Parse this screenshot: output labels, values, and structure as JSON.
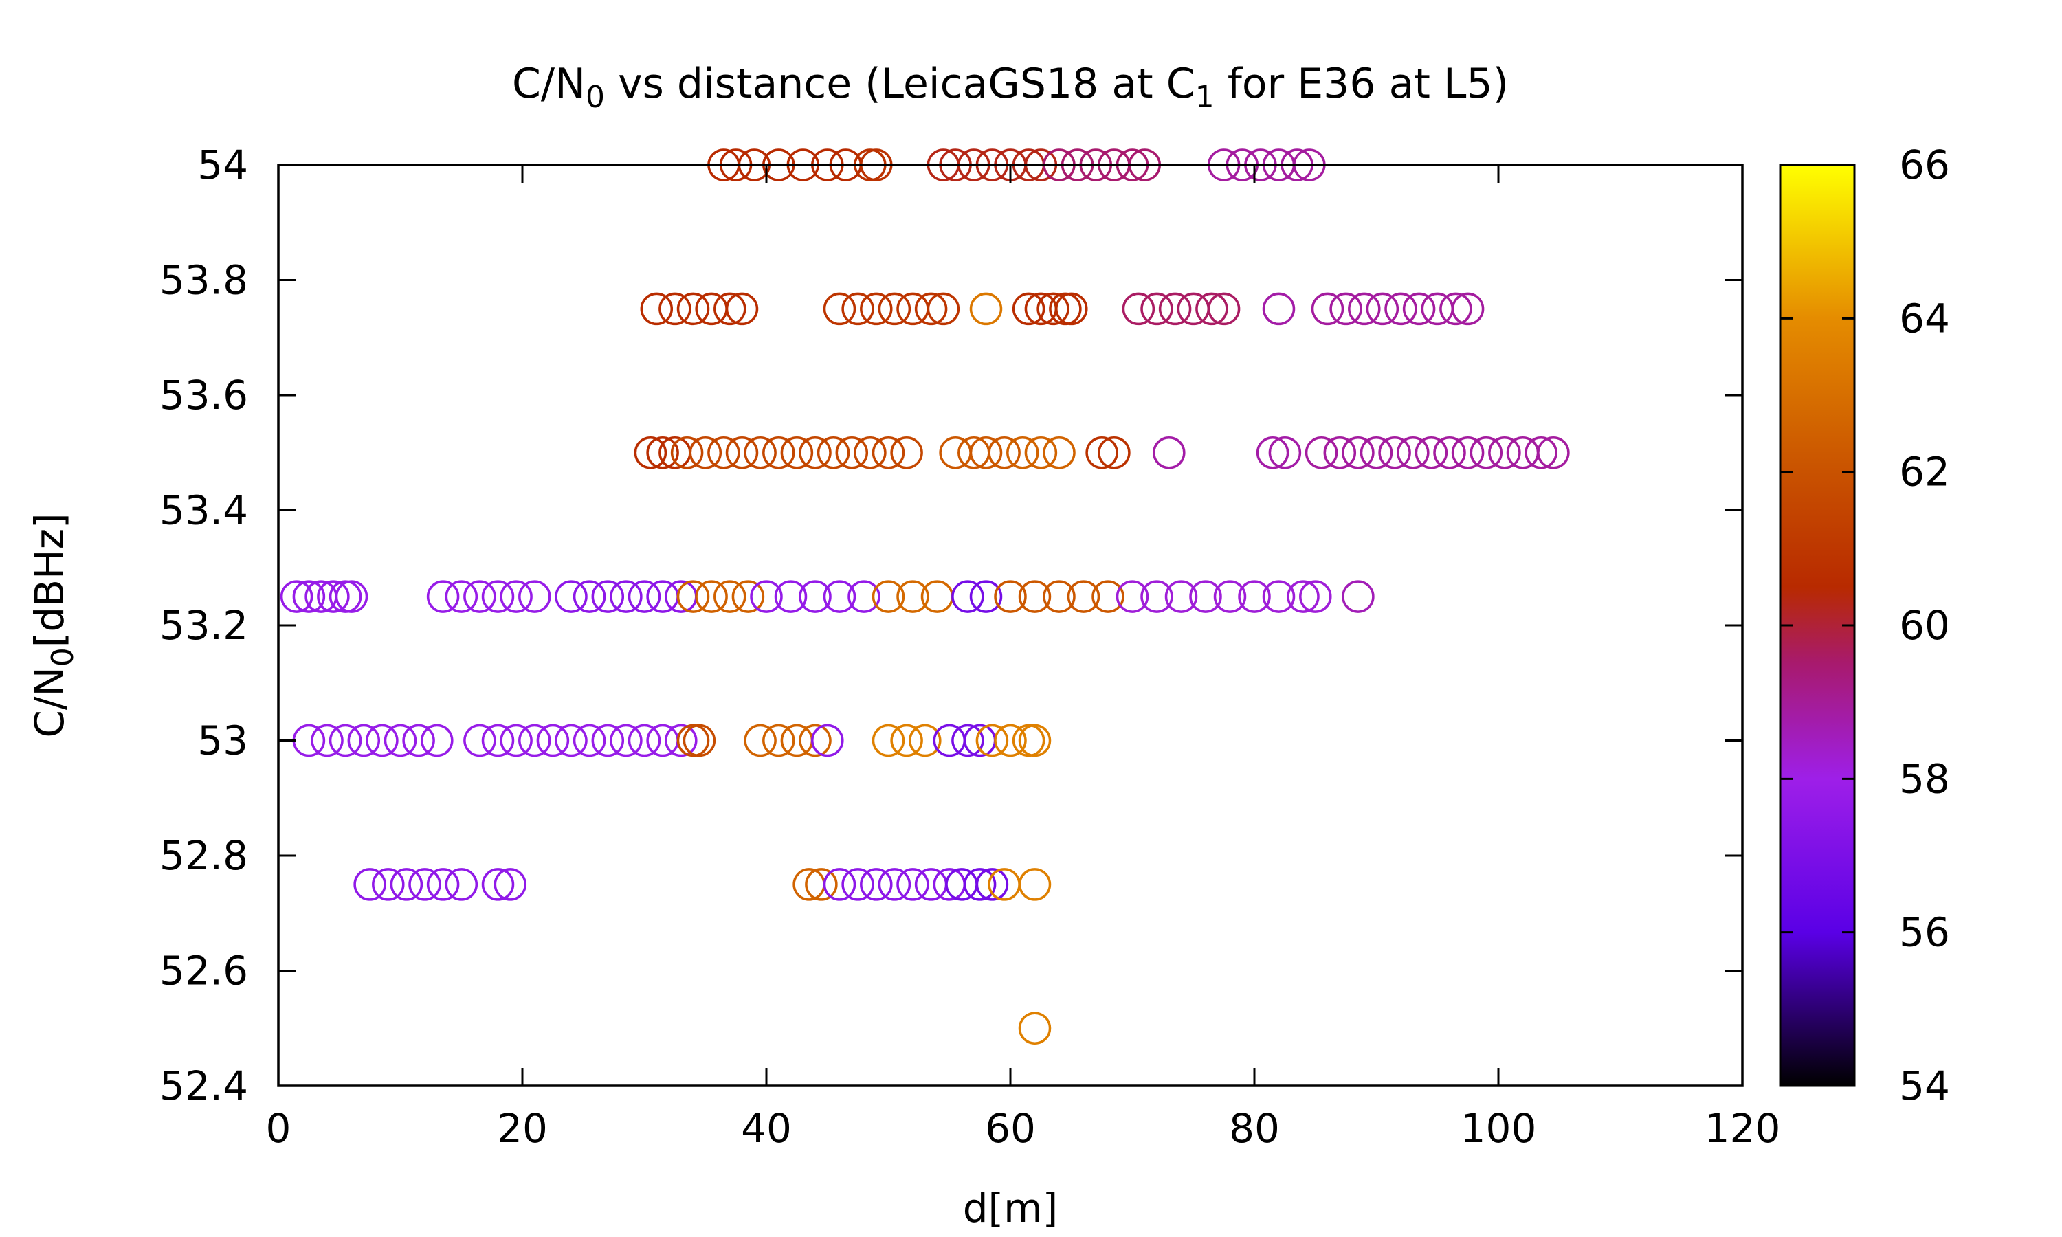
{
  "chart_data": {
    "type": "scatter",
    "title": {
      "main": "C/N",
      "main_sub": "0",
      "middle": " vs distance (LeicaGS18 at C",
      "middle_sub": "1",
      "end": " for E36 at L5)"
    },
    "xlabel": "d[m]",
    "ylabel": {
      "main": "C/N",
      "sub": "0",
      "end": "[dBHz]"
    },
    "xlim": [
      0,
      120
    ],
    "ylim": [
      52.4,
      54
    ],
    "x_ticks": [
      "0",
      "20",
      "40",
      "60",
      "80",
      "100",
      "120"
    ],
    "y_ticks": [
      "52.4",
      "52.6",
      "52.8",
      "53",
      "53.2",
      "53.4",
      "53.6",
      "53.8",
      "54"
    ],
    "grid": false,
    "legend": "none",
    "marker": "open-circle",
    "colorbar": {
      "range": [
        54,
        66
      ],
      "ticks": [
        "54",
        "56",
        "58",
        "60",
        "62",
        "64",
        "66"
      ],
      "palette": [
        {
          "v": 54,
          "color": "#000000"
        },
        {
          "v": 56,
          "color": "#5a00e6"
        },
        {
          "v": 58,
          "color": "#9e1fe8"
        },
        {
          "v": 59.5,
          "color": "#a81a6e"
        },
        {
          "v": 60.5,
          "color": "#b82a00"
        },
        {
          "v": 62,
          "color": "#c95200"
        },
        {
          "v": 64,
          "color": "#e58c00"
        },
        {
          "v": 66,
          "color": "#ffff00"
        }
      ]
    },
    "clusters": [
      {
        "y": 54,
        "x": [
          36.5,
          37.5,
          39,
          41,
          43,
          45,
          46.5
        ],
        "c": 60.5
      },
      {
        "y": 54,
        "x": [
          48.5,
          49
        ],
        "c": 60.8
      },
      {
        "y": 54,
        "x": [
          54.5,
          55.5,
          57,
          58.5,
          60,
          61.5,
          62.5
        ],
        "c": 60.3
      },
      {
        "y": 54,
        "x": [
          64,
          65.5,
          67,
          68.5,
          70,
          71
        ],
        "c": 59.5
      },
      {
        "y": 54,
        "x": [
          77.5,
          79,
          80.5,
          82,
          83.5,
          84.5
        ],
        "c": 58.9
      },
      {
        "y": 53.75,
        "x": [
          31,
          32.5,
          34,
          35.5,
          37,
          38
        ],
        "c": 60.6
      },
      {
        "y": 53.75,
        "x": [
          46,
          47.5,
          49,
          50.5,
          52,
          53.5,
          54.5
        ],
        "c": 60.9
      },
      {
        "y": 53.75,
        "x": [
          58
        ],
        "c": 63.3
      },
      {
        "y": 53.75,
        "x": [
          61.5,
          62.5,
          63.5,
          64.5,
          65
        ],
        "c": 60.6
      },
      {
        "y": 53.75,
        "x": [
          70.5,
          72,
          73.5,
          75,
          76.5,
          77.5
        ],
        "c": 59.6
      },
      {
        "y": 53.75,
        "x": [
          82
        ],
        "c": 58.8
      },
      {
        "y": 53.75,
        "x": [
          86,
          87.5,
          89,
          90.5,
          92,
          93.5,
          95,
          96.5,
          97.5
        ],
        "c": 58.9
      },
      {
        "y": 53.5,
        "x": [
          30.5,
          31.5,
          32.5
        ],
        "c": 60.6
      },
      {
        "y": 53.5,
        "x": [
          33.5,
          35,
          36.5,
          38,
          39.5,
          41,
          42.5,
          44,
          45.5,
          47,
          48.5,
          50,
          51.5
        ],
        "c": 61.6
      },
      {
        "y": 53.5,
        "x": [
          55.5,
          57,
          58,
          59.5
        ],
        "c": 62.2
      },
      {
        "y": 53.5,
        "x": [
          61,
          62.5,
          64
        ],
        "c": 62.6
      },
      {
        "y": 53.5,
        "x": [
          67.5,
          68.5
        ],
        "c": 60.8
      },
      {
        "y": 53.5,
        "x": [
          73
        ],
        "c": 58.8
      },
      {
        "y": 53.5,
        "x": [
          81.5,
          82.5
        ],
        "c": 58.8
      },
      {
        "y": 53.5,
        "x": [
          85.5,
          87,
          88.5,
          90,
          91.5,
          93,
          94.5,
          96,
          97.5,
          99,
          100.5,
          102,
          103.5,
          104.5
        ],
        "c": 58.9
      },
      {
        "y": 53.25,
        "x": [
          1.5,
          2.5,
          3.5,
          4.5,
          5.5,
          6
        ],
        "c": 57.8
      },
      {
        "y": 53.25,
        "x": [
          13.5,
          15,
          16.5,
          18,
          19.5,
          21
        ],
        "c": 57.8
      },
      {
        "y": 53.25,
        "x": [
          24,
          25.5,
          27,
          28.5,
          30,
          31.5,
          33
        ],
        "c": 57.5
      },
      {
        "y": 53.25,
        "x": [
          34,
          35.5,
          37,
          38.5
        ],
        "c": 62.5
      },
      {
        "y": 53.25,
        "x": [
          40,
          42,
          44,
          46,
          48
        ],
        "c": 57.7
      },
      {
        "y": 53.25,
        "x": [
          50,
          52,
          54
        ],
        "c": 62.8
      },
      {
        "y": 53.25,
        "x": [
          56.5,
          58
        ],
        "c": 56.8
      },
      {
        "y": 53.25,
        "x": [
          60,
          62,
          64,
          66,
          68
        ],
        "c": 62.2
      },
      {
        "y": 53.25,
        "x": [
          70,
          72,
          74,
          76,
          78,
          80,
          82,
          84,
          85
        ],
        "c": 58.2
      },
      {
        "y": 53.25,
        "x": [
          88.5
        ],
        "c": 58.6
      },
      {
        "y": 53,
        "x": [
          2.5,
          4,
          5.5,
          7,
          8.5,
          10,
          11.5,
          13
        ],
        "c": 57.8
      },
      {
        "y": 53,
        "x": [
          16.5,
          18,
          19.5,
          21,
          22.5,
          24,
          25.5,
          27,
          28.5,
          30,
          31.5,
          33
        ],
        "c": 57.8
      },
      {
        "y": 53,
        "x": [
          34,
          34.5
        ],
        "c": 61.8
      },
      {
        "y": 53,
        "x": [
          39.5,
          41,
          42.5,
          44
        ],
        "c": 62.6
      },
      {
        "y": 53,
        "x": [
          45
        ],
        "c": 57.6
      },
      {
        "y": 53,
        "x": [
          50,
          51.5,
          53
        ],
        "c": 63.6
      },
      {
        "y": 53,
        "x": [
          55,
          56.5,
          57.5
        ],
        "c": 56.9
      },
      {
        "y": 53,
        "x": [
          58.5,
          60,
          61.5,
          62
        ],
        "c": 63.6
      },
      {
        "y": 52.75,
        "x": [
          7.5,
          9,
          10.5,
          12,
          13.5,
          15,
          18,
          19
        ],
        "c": 57.6
      },
      {
        "y": 52.75,
        "x": [
          43.5,
          44.5
        ],
        "c": 62.6
      },
      {
        "y": 52.75,
        "x": [
          46,
          47.5,
          49,
          50.5,
          52,
          53.5,
          55
        ],
        "c": 57.5
      },
      {
        "y": 52.75,
        "x": [
          56,
          57.5,
          58.5
        ],
        "c": 56.8
      },
      {
        "y": 52.75,
        "x": [
          59.5,
          62
        ],
        "c": 63.6
      },
      {
        "y": 52.5,
        "x": [
          62
        ],
        "c": 63.6
      }
    ]
  }
}
